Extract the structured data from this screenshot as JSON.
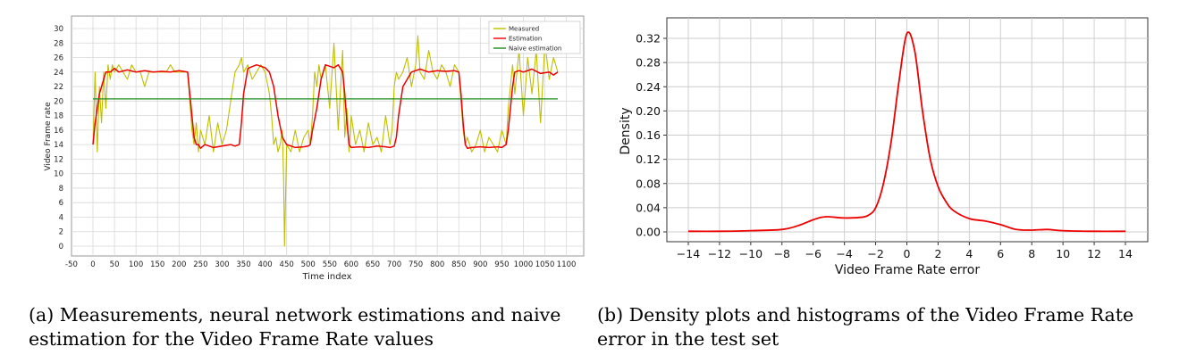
{
  "chart_data": [
    {
      "type": "line",
      "xlabel": "Time index",
      "ylabel": "Video Frame rate",
      "xlim": [
        -50,
        1100
      ],
      "ylim": [
        0,
        30
      ],
      "xticks": [
        -50,
        0,
        50,
        100,
        150,
        200,
        250,
        300,
        350,
        400,
        450,
        500,
        550,
        600,
        650,
        700,
        750,
        800,
        850,
        900,
        950,
        1000,
        1050,
        1100
      ],
      "yticks": [
        0,
        2,
        4,
        6,
        8,
        10,
        12,
        14,
        16,
        18,
        20,
        22,
        24,
        26,
        28,
        30
      ],
      "grid": true,
      "legend_position": "top-right",
      "colors": {
        "measured": "#bfbf00",
        "estimation": "#ee0000",
        "naive": "#1a8c1a"
      },
      "series": [
        {
          "name": "Measured",
          "x": [
            0,
            5,
            10,
            15,
            20,
            25,
            30,
            35,
            40,
            45,
            50,
            60,
            70,
            80,
            90,
            100,
            110,
            120,
            130,
            140,
            150,
            160,
            170,
            180,
            190,
            200,
            210,
            220,
            225,
            230,
            235,
            240,
            245,
            250,
            260,
            270,
            280,
            290,
            300,
            310,
            320,
            330,
            340,
            345,
            350,
            360,
            370,
            380,
            390,
            400,
            410,
            415,
            420,
            425,
            430,
            435,
            440,
            443,
            445,
            450,
            460,
            470,
            480,
            490,
            500,
            505,
            510,
            515,
            520,
            525,
            530,
            540,
            550,
            560,
            570,
            580,
            585,
            590,
            595,
            600,
            610,
            620,
            630,
            640,
            650,
            660,
            670,
            680,
            690,
            695,
            700,
            705,
            710,
            720,
            730,
            740,
            750,
            755,
            760,
            770,
            780,
            790,
            800,
            810,
            820,
            830,
            840,
            850,
            855,
            860,
            865,
            870,
            880,
            890,
            900,
            910,
            920,
            930,
            940,
            950,
            960,
            965,
            970,
            975,
            980,
            990,
            1000,
            1010,
            1020,
            1030,
            1040,
            1050,
            1060,
            1070,
            1080
          ],
          "y": [
            14,
            24,
            13,
            22,
            17,
            24,
            19,
            25,
            23,
            25,
            24,
            25,
            24,
            23,
            25,
            24,
            24,
            22,
            24,
            24,
            24,
            24,
            24,
            25,
            24,
            24,
            24,
            24,
            20,
            16,
            14,
            17,
            13,
            16,
            14,
            18,
            13,
            17,
            14,
            16,
            20,
            24,
            25,
            26,
            24,
            25,
            23,
            24,
            25,
            24,
            21,
            18,
            14,
            15,
            13,
            14,
            16,
            9,
            0,
            14,
            13,
            16,
            13,
            15,
            16,
            14,
            18,
            24,
            22,
            25,
            23,
            25,
            19,
            28,
            16,
            27,
            15,
            19,
            13,
            18,
            14,
            16,
            13,
            17,
            14,
            15,
            13,
            18,
            14,
            16,
            22,
            24,
            23,
            24,
            26,
            22,
            25,
            29,
            24,
            23,
            27,
            24,
            23,
            25,
            24,
            22,
            25,
            24,
            20,
            16,
            14,
            15,
            13,
            14,
            16,
            13,
            15,
            14,
            13,
            16,
            14,
            19,
            22,
            25,
            21,
            27,
            18,
            26,
            21,
            27,
            17,
            28,
            23,
            26,
            24
          ]
        },
        {
          "name": "Estimation",
          "x": [
            0,
            5,
            10,
            15,
            20,
            25,
            30,
            40,
            50,
            60,
            80,
            100,
            120,
            140,
            160,
            180,
            200,
            220,
            225,
            230,
            235,
            240,
            245,
            250,
            260,
            280,
            300,
            320,
            330,
            340,
            345,
            350,
            360,
            380,
            400,
            410,
            420,
            430,
            440,
            450,
            470,
            490,
            500,
            505,
            510,
            520,
            530,
            540,
            560,
            570,
            580,
            585,
            590,
            595,
            600,
            620,
            640,
            660,
            680,
            690,
            700,
            705,
            710,
            720,
            740,
            760,
            780,
            800,
            820,
            840,
            850,
            855,
            860,
            865,
            870,
            880,
            900,
            920,
            940,
            950,
            960,
            965,
            970,
            975,
            980,
            990,
            1000,
            1020,
            1040,
            1060,
            1070,
            1080
          ],
          "y": [
            14,
            17,
            19,
            21,
            22,
            23,
            24,
            24,
            24.5,
            24,
            24.3,
            24,
            24.2,
            24,
            24.1,
            24,
            24.2,
            24,
            21,
            18,
            15,
            14,
            14,
            13.5,
            14,
            13.6,
            13.8,
            14,
            13.8,
            14,
            17,
            21,
            24.5,
            25,
            24.6,
            24,
            22,
            18,
            15,
            14,
            13.6,
            13.7,
            13.8,
            14,
            16,
            19,
            23,
            25,
            24.6,
            25,
            24,
            21,
            17,
            14,
            13.6,
            13.7,
            13.6,
            13.8,
            13.7,
            13.6,
            13.8,
            15,
            18,
            22,
            24,
            24.4,
            24,
            24.2,
            24.1,
            24.2,
            24,
            21,
            17,
            14,
            13.5,
            13.6,
            13.7,
            13.6,
            13.7,
            13.6,
            14,
            16,
            19,
            22,
            24,
            24.2,
            24,
            24.4,
            23.8,
            24,
            23.6,
            24
          ]
        },
        {
          "name": "Naive estimation",
          "x": [
            0,
            1080
          ],
          "y": [
            20.3,
            20.3
          ]
        }
      ]
    },
    {
      "type": "line",
      "xlabel": "Video Frame Rate error",
      "ylabel": "Density",
      "xlim": [
        -15,
        15
      ],
      "ylim": [
        -0.013,
        0.34
      ],
      "xticks": [
        -14,
        -12,
        -10,
        -8,
        -6,
        -4,
        -2,
        0,
        2,
        4,
        6,
        8,
        10,
        12,
        14
      ],
      "xtick_labels": [
        "−14",
        "−12",
        "−10",
        "−8",
        "−6",
        "−4",
        "−2",
        "0",
        "2",
        "4",
        "6",
        "8",
        "10",
        "12",
        "14"
      ],
      "yticks": [
        0.0,
        0.04,
        0.08,
        0.12,
        0.16,
        0.2,
        0.24,
        0.28,
        0.32
      ],
      "ytick_labels": [
        "0.00",
        "0.04",
        "0.08",
        "0.12",
        "0.16",
        "0.20",
        "0.24",
        "0.28",
        "0.32"
      ],
      "grid": true,
      "colors": {
        "line": "#ee0000"
      },
      "series": [
        {
          "x": [
            -14,
            -12,
            -10,
            -8,
            -7,
            -6,
            -5.5,
            -5,
            -4,
            -3,
            -2.5,
            -2,
            -1.5,
            -1,
            -0.5,
            0,
            0.5,
            1,
            1.5,
            2,
            2.5,
            3,
            4,
            5,
            6,
            7,
            8,
            9,
            10,
            12,
            14
          ],
          "y": [
            0.001,
            0.001,
            0.002,
            0.004,
            0.01,
            0.02,
            0.024,
            0.025,
            0.023,
            0.024,
            0.027,
            0.04,
            0.08,
            0.15,
            0.25,
            0.328,
            0.3,
            0.2,
            0.12,
            0.075,
            0.05,
            0.035,
            0.022,
            0.018,
            0.012,
            0.004,
            0.003,
            0.004,
            0.002,
            0.001,
            0.001
          ]
        }
      ]
    }
  ],
  "captions": {
    "a_line1": "(a) Measurements, neural network estimations and naive",
    "a_line2": "estimation for the Video Frame Rate values",
    "b_line1": "(b) Density plots and histograms of the Video Frame Rate",
    "b_line2": "error in the test set"
  }
}
